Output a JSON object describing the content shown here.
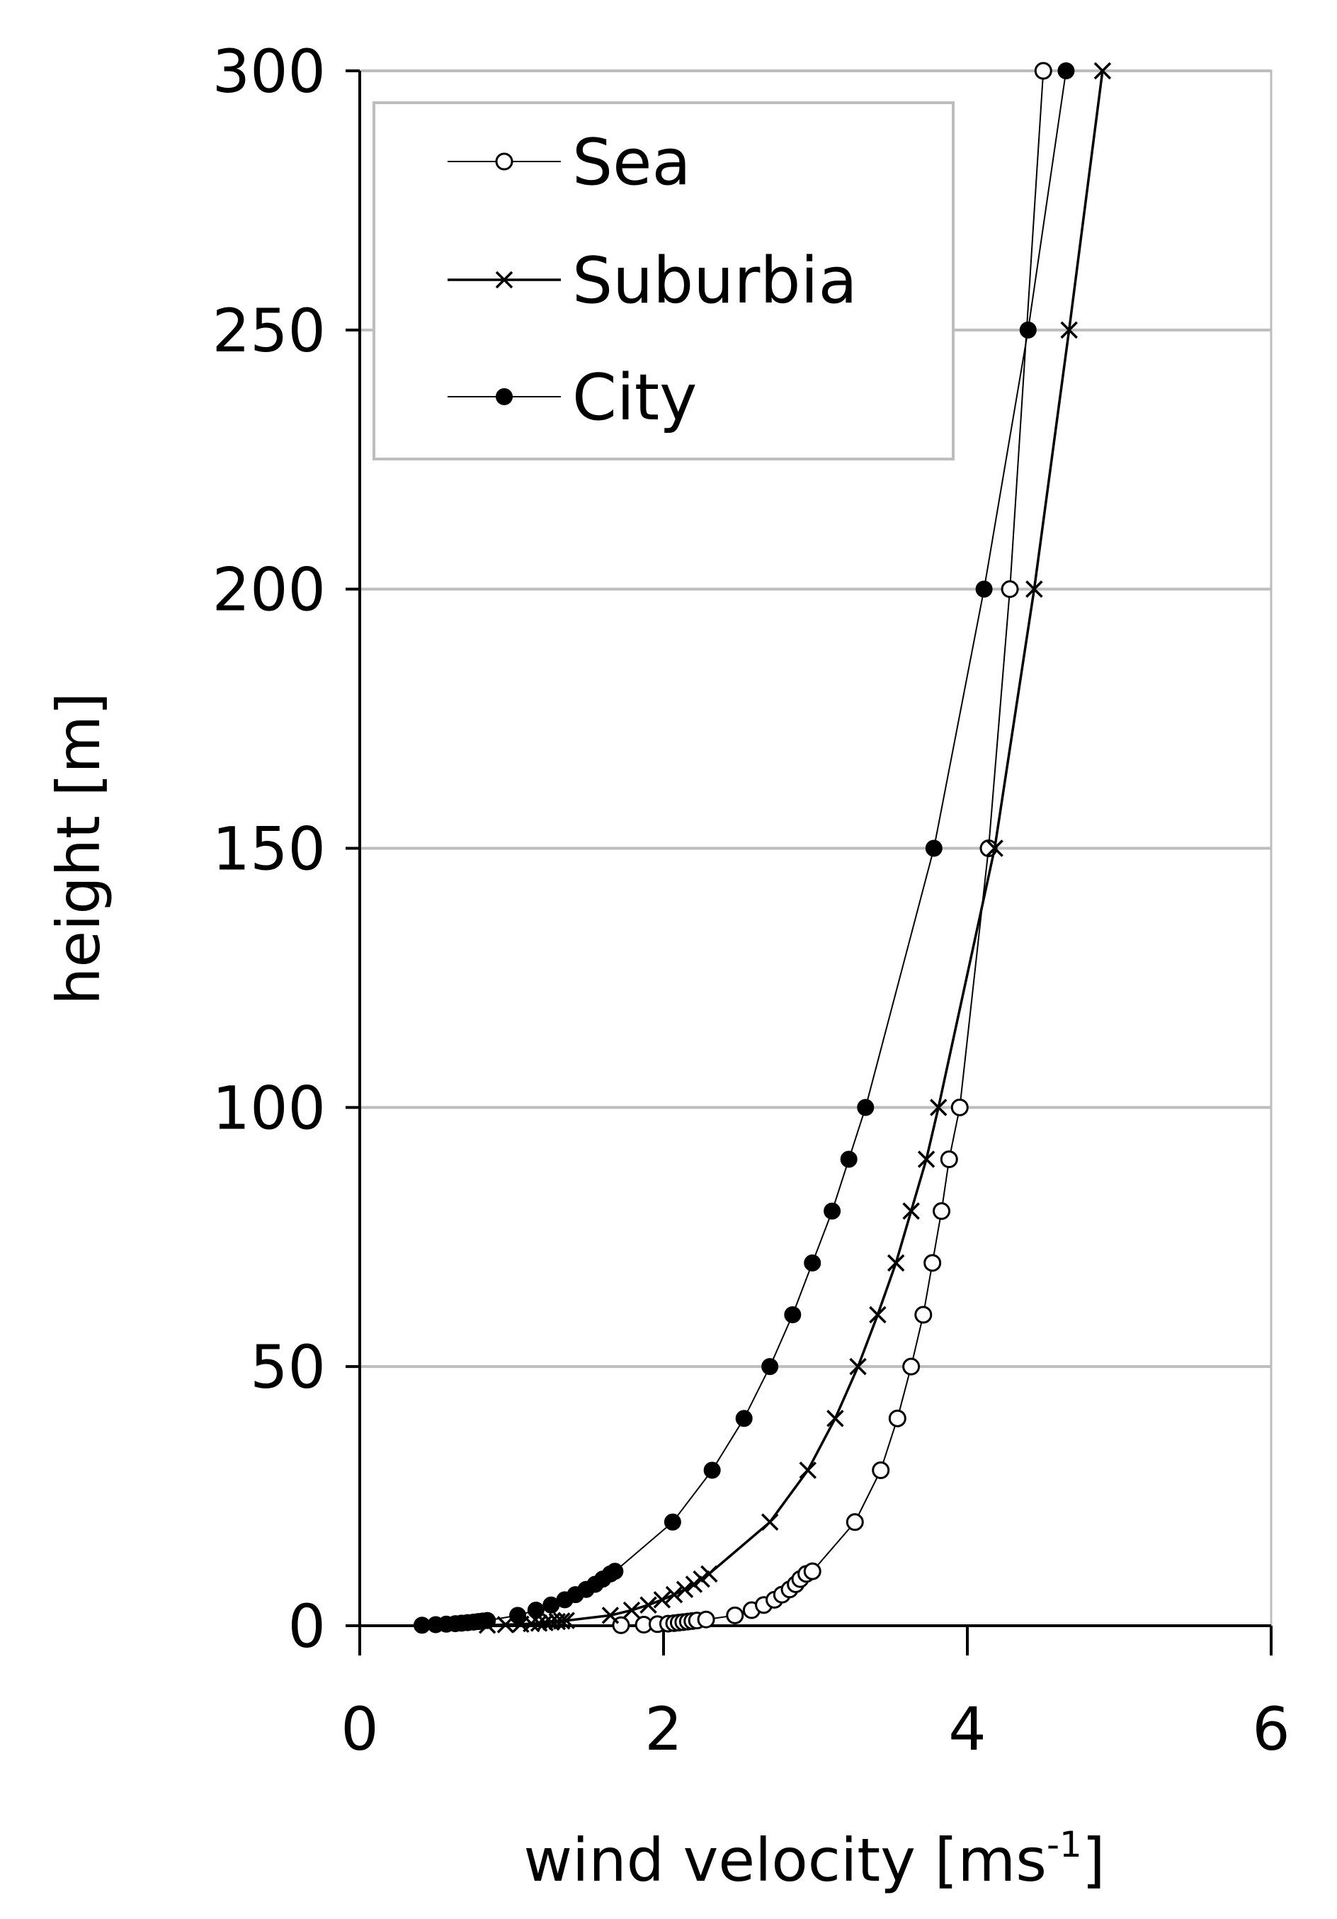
{
  "chart_data": {
    "type": "line",
    "xlabel": "wind velocity [ms",
    "xlabel_sup": "-1",
    "xlabel_close": "]",
    "ylabel": "height [m]",
    "xlim": [
      0,
      6
    ],
    "ylim": [
      0,
      300
    ],
    "xticks": [
      "0",
      "2",
      "4",
      "6"
    ],
    "yticks": [
      "0",
      "50",
      "100",
      "150",
      "200",
      "250",
      "300"
    ],
    "grid": "horizontal",
    "legend_position": "top-left",
    "series": [
      {
        "name": "Sea",
        "marker": "open-circle",
        "points": [
          [
            1.72,
            0.1
          ],
          [
            1.87,
            0.2
          ],
          [
            1.96,
            0.3
          ],
          [
            2.03,
            0.4
          ],
          [
            2.07,
            0.5
          ],
          [
            2.1,
            0.6
          ],
          [
            2.13,
            0.7
          ],
          [
            2.16,
            0.8
          ],
          [
            2.19,
            0.9
          ],
          [
            2.22,
            1.0
          ],
          [
            2.28,
            1.2
          ],
          [
            2.47,
            2
          ],
          [
            2.58,
            3
          ],
          [
            2.66,
            4
          ],
          [
            2.73,
            5
          ],
          [
            2.78,
            6
          ],
          [
            2.83,
            7
          ],
          [
            2.87,
            8
          ],
          [
            2.9,
            9
          ],
          [
            2.94,
            10
          ],
          [
            2.98,
            10.5
          ],
          [
            3.26,
            20
          ],
          [
            3.43,
            30
          ],
          [
            3.54,
            40
          ],
          [
            3.63,
            50
          ],
          [
            3.71,
            60
          ],
          [
            3.77,
            70
          ],
          [
            3.83,
            80
          ],
          [
            3.88,
            90
          ],
          [
            3.95,
            100
          ],
          [
            4.14,
            150
          ],
          [
            4.28,
            200
          ],
          [
            4.5,
            300
          ]
        ]
      },
      {
        "name": "Suburbia",
        "marker": "cross",
        "points": [
          [
            0.84,
            0.1
          ],
          [
            0.96,
            0.2
          ],
          [
            1.06,
            0.3
          ],
          [
            1.13,
            0.4
          ],
          [
            1.18,
            0.5
          ],
          [
            1.22,
            0.6
          ],
          [
            1.26,
            0.7
          ],
          [
            1.3,
            0.8
          ],
          [
            1.33,
            0.9
          ],
          [
            1.36,
            1.0
          ],
          [
            1.65,
            2
          ],
          [
            1.79,
            3
          ],
          [
            1.9,
            4
          ],
          [
            1.99,
            5
          ],
          [
            2.07,
            6
          ],
          [
            2.14,
            7
          ],
          [
            2.2,
            8
          ],
          [
            2.25,
            9
          ],
          [
            2.3,
            10
          ],
          [
            2.7,
            20
          ],
          [
            2.95,
            30
          ],
          [
            3.13,
            40
          ],
          [
            3.28,
            50
          ],
          [
            3.41,
            60
          ],
          [
            3.53,
            70
          ],
          [
            3.63,
            80
          ],
          [
            3.73,
            90
          ],
          [
            3.81,
            100
          ],
          [
            4.18,
            150
          ],
          [
            4.44,
            200
          ],
          [
            4.67,
            250
          ],
          [
            4.89,
            300
          ]
        ]
      },
      {
        "name": "City",
        "marker": "filled-circle",
        "points": [
          [
            0.41,
            0.1
          ],
          [
            0.5,
            0.2
          ],
          [
            0.57,
            0.3
          ],
          [
            0.63,
            0.4
          ],
          [
            0.67,
            0.5
          ],
          [
            0.71,
            0.6
          ],
          [
            0.75,
            0.7
          ],
          [
            0.78,
            0.8
          ],
          [
            0.81,
            0.9
          ],
          [
            0.84,
            1.0
          ],
          [
            1.04,
            2
          ],
          [
            1.16,
            3
          ],
          [
            1.26,
            4
          ],
          [
            1.35,
            5
          ],
          [
            1.42,
            6
          ],
          [
            1.49,
            7
          ],
          [
            1.55,
            8
          ],
          [
            1.6,
            9
          ],
          [
            1.65,
            10
          ],
          [
            1.68,
            10.5
          ],
          [
            2.06,
            20
          ],
          [
            2.32,
            30
          ],
          [
            2.53,
            40
          ],
          [
            2.7,
            50
          ],
          [
            2.85,
            60
          ],
          [
            2.98,
            70
          ],
          [
            3.11,
            80
          ],
          [
            3.22,
            90
          ],
          [
            3.33,
            100
          ],
          [
            3.78,
            150
          ],
          [
            4.11,
            200
          ],
          [
            4.4,
            250
          ],
          [
            4.65,
            300
          ]
        ]
      }
    ]
  }
}
